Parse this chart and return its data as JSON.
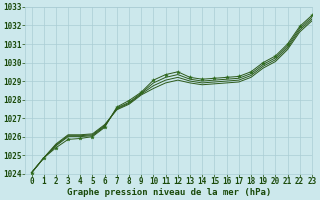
{
  "background_color": "#cce8ec",
  "grid_color": "#aacdd4",
  "line_color": "#2d5a1b",
  "marker_color": "#2d6b1b",
  "xlabel": "Graphe pression niveau de la mer (hPa)",
  "xlabel_color": "#1a4a0a",
  "xlim": [
    -0.5,
    23
  ],
  "ylim": [
    1024,
    1033
  ],
  "xticks": [
    0,
    1,
    2,
    3,
    4,
    5,
    6,
    7,
    8,
    9,
    10,
    11,
    12,
    13,
    14,
    15,
    16,
    17,
    18,
    19,
    20,
    21,
    22,
    23
  ],
  "yticks": [
    1024,
    1025,
    1026,
    1027,
    1028,
    1029,
    1030,
    1031,
    1032,
    1033
  ],
  "series": [
    [
      1024.05,
      1024.85,
      1025.4,
      1025.85,
      1025.9,
      1026.0,
      1026.5,
      1027.6,
      1027.95,
      1028.4,
      1029.05,
      1029.35,
      1029.5,
      1029.2,
      1029.1,
      1029.15,
      1029.2,
      1029.25,
      1029.5,
      1030.0,
      1030.35,
      1031.0,
      1031.95,
      1032.55
    ],
    [
      1024.05,
      1024.85,
      1025.5,
      1026.0,
      1026.0,
      1026.05,
      1026.55,
      1027.55,
      1027.85,
      1028.35,
      1028.9,
      1029.2,
      1029.35,
      1029.1,
      1029.0,
      1029.05,
      1029.1,
      1029.15,
      1029.4,
      1029.9,
      1030.25,
      1030.9,
      1031.85,
      1032.45
    ],
    [
      1024.05,
      1024.85,
      1025.55,
      1026.05,
      1026.05,
      1026.1,
      1026.6,
      1027.5,
      1027.8,
      1028.3,
      1028.75,
      1029.05,
      1029.2,
      1029.0,
      1028.9,
      1028.95,
      1029.0,
      1029.05,
      1029.3,
      1029.8,
      1030.15,
      1030.8,
      1031.75,
      1032.35
    ],
    [
      1024.05,
      1024.85,
      1025.6,
      1026.1,
      1026.1,
      1026.15,
      1026.65,
      1027.45,
      1027.75,
      1028.25,
      1028.6,
      1028.9,
      1029.05,
      1028.9,
      1028.8,
      1028.85,
      1028.9,
      1028.95,
      1029.2,
      1029.7,
      1030.05,
      1030.7,
      1031.65,
      1032.25
    ]
  ],
  "marker_indices": [
    0,
    2,
    4,
    6,
    8,
    10,
    12,
    14,
    16,
    18,
    20,
    22
  ],
  "tick_fontsize": 5.5,
  "label_fontsize": 6.5,
  "figsize": [
    3.2,
    2.0
  ],
  "dpi": 100
}
